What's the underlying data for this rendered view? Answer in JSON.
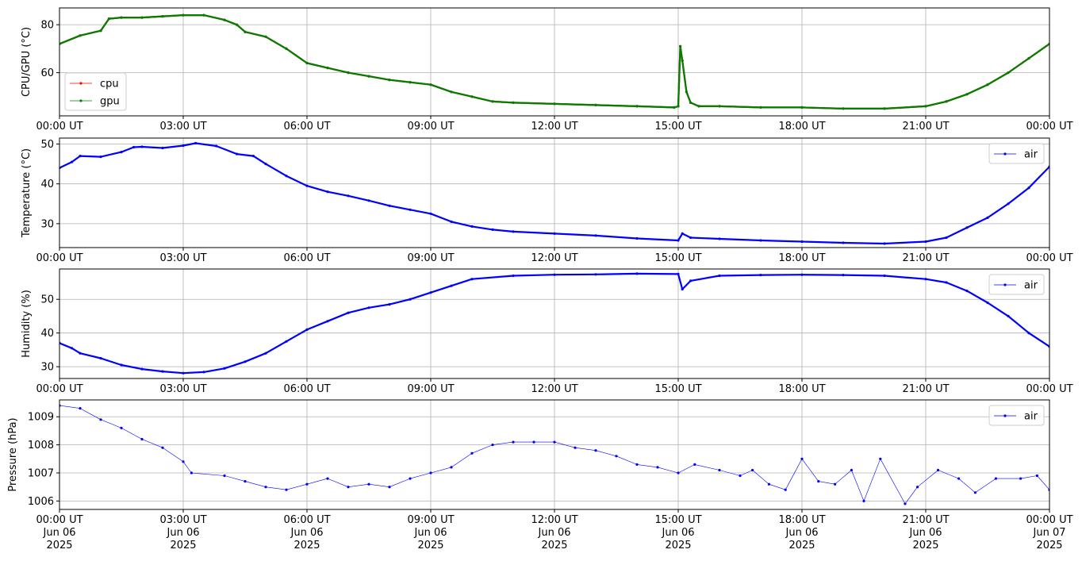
{
  "chart_data": [
    {
      "type": "line",
      "ylabel": "CPU/GPU (°C)",
      "ylim": [
        42,
        87
      ],
      "yticks": [
        60,
        80
      ],
      "xlim": [
        0,
        24
      ],
      "xtick_labels": [
        "00:00 UT",
        "03:00 UT",
        "06:00 UT",
        "09:00 UT",
        "12:00 UT",
        "15:00 UT",
        "18:00 UT",
        "21:00 UT",
        "00:00 UT"
      ],
      "grid": true,
      "legend_position": "lower-left",
      "series": [
        {
          "name": "cpu",
          "color": "#ff0000",
          "points": [
            [
              0,
              72
            ],
            [
              0.5,
              75.5
            ],
            [
              1,
              77.5
            ],
            [
              1.2,
              82.5
            ],
            [
              1.5,
              83
            ],
            [
              2,
              83
            ],
            [
              2.5,
              83.5
            ],
            [
              3,
              84
            ],
            [
              3.5,
              84
            ],
            [
              4,
              82
            ],
            [
              4.3,
              80
            ],
            [
              4.5,
              77
            ],
            [
              5,
              75
            ],
            [
              5.5,
              70
            ],
            [
              6,
              64
            ],
            [
              6.5,
              62
            ],
            [
              7,
              60
            ],
            [
              7.5,
              58.5
            ],
            [
              8,
              57
            ],
            [
              8.5,
              56
            ],
            [
              9,
              55
            ],
            [
              9.5,
              52
            ],
            [
              10,
              50
            ],
            [
              10.5,
              48
            ],
            [
              11,
              47.5
            ],
            [
              12,
              47
            ],
            [
              13,
              46.5
            ],
            [
              14,
              46
            ],
            [
              14.9,
              45.5
            ],
            [
              15,
              46
            ],
            [
              15.05,
              71
            ],
            [
              15.1,
              65
            ],
            [
              15.2,
              52
            ],
            [
              15.3,
              47.5
            ],
            [
              15.5,
              46
            ],
            [
              16,
              46
            ],
            [
              17,
              45.5
            ],
            [
              18,
              45.5
            ],
            [
              19,
              45
            ],
            [
              20,
              45
            ],
            [
              21,
              46
            ],
            [
              21.5,
              48
            ],
            [
              22,
              51
            ],
            [
              22.5,
              55
            ],
            [
              23,
              60
            ],
            [
              23.5,
              66
            ],
            [
              24,
              72
            ]
          ]
        },
        {
          "name": "gpu",
          "color": "#008000",
          "points": [
            [
              0,
              72
            ],
            [
              0.5,
              75.5
            ],
            [
              1,
              77.5
            ],
            [
              1.2,
              82.5
            ],
            [
              1.5,
              83
            ],
            [
              2,
              83
            ],
            [
              2.5,
              83.5
            ],
            [
              3,
              84
            ],
            [
              3.5,
              84
            ],
            [
              4,
              82
            ],
            [
              4.3,
              80
            ],
            [
              4.5,
              77
            ],
            [
              5,
              75
            ],
            [
              5.5,
              70
            ],
            [
              6,
              64
            ],
            [
              6.5,
              62
            ],
            [
              7,
              60
            ],
            [
              7.5,
              58.5
            ],
            [
              8,
              57
            ],
            [
              8.5,
              56
            ],
            [
              9,
              55
            ],
            [
              9.5,
              52
            ],
            [
              10,
              50
            ],
            [
              10.5,
              48
            ],
            [
              11,
              47.5
            ],
            [
              12,
              47
            ],
            [
              13,
              46.5
            ],
            [
              14,
              46
            ],
            [
              14.9,
              45.5
            ],
            [
              15,
              46
            ],
            [
              15.05,
              71
            ],
            [
              15.1,
              65
            ],
            [
              15.2,
              52
            ],
            [
              15.3,
              47.5
            ],
            [
              15.5,
              46
            ],
            [
              16,
              46
            ],
            [
              17,
              45.5
            ],
            [
              18,
              45.5
            ],
            [
              19,
              45
            ],
            [
              20,
              45
            ],
            [
              21,
              46
            ],
            [
              21.5,
              48
            ],
            [
              22,
              51
            ],
            [
              22.5,
              55
            ],
            [
              23,
              60
            ],
            [
              23.5,
              66
            ],
            [
              24,
              72
            ]
          ]
        }
      ]
    },
    {
      "type": "line",
      "ylabel": "Temperature (°C)",
      "ylim": [
        24,
        51.5
      ],
      "yticks": [
        30,
        40,
        50
      ],
      "xlim": [
        0,
        24
      ],
      "xtick_labels": [
        "00:00 UT",
        "03:00 UT",
        "06:00 UT",
        "09:00 UT",
        "12:00 UT",
        "15:00 UT",
        "18:00 UT",
        "21:00 UT",
        "00:00 UT"
      ],
      "grid": true,
      "legend_position": "upper-right",
      "series": [
        {
          "name": "air",
          "color": "#0000ff",
          "points": [
            [
              0,
              44
            ],
            [
              0.3,
              45.5
            ],
            [
              0.5,
              47
            ],
            [
              1,
              46.8
            ],
            [
              1.5,
              48
            ],
            [
              1.8,
              49.2
            ],
            [
              2,
              49.3
            ],
            [
              2.5,
              49
            ],
            [
              3,
              49.6
            ],
            [
              3.3,
              50.2
            ],
            [
              3.8,
              49.5
            ],
            [
              4.3,
              47.5
            ],
            [
              4.7,
              47
            ],
            [
              5,
              45
            ],
            [
              5.5,
              42
            ],
            [
              6,
              39.5
            ],
            [
              6.5,
              38
            ],
            [
              7,
              37
            ],
            [
              7.5,
              35.8
            ],
            [
              8,
              34.5
            ],
            [
              8.5,
              33.5
            ],
            [
              9,
              32.5
            ],
            [
              9.5,
              30.5
            ],
            [
              10,
              29.3
            ],
            [
              10.5,
              28.5
            ],
            [
              11,
              28
            ],
            [
              12,
              27.5
            ],
            [
              13,
              27
            ],
            [
              14,
              26.3
            ],
            [
              15,
              25.8
            ],
            [
              15.1,
              27.5
            ],
            [
              15.3,
              26.5
            ],
            [
              16,
              26.2
            ],
            [
              17,
              25.8
            ],
            [
              18,
              25.5
            ],
            [
              19,
              25.2
            ],
            [
              20,
              25
            ],
            [
              21,
              25.5
            ],
            [
              21.5,
              26.5
            ],
            [
              22,
              29
            ],
            [
              22.5,
              31.5
            ],
            [
              23,
              35
            ],
            [
              23.5,
              39
            ],
            [
              24,
              44.3
            ]
          ]
        }
      ]
    },
    {
      "type": "line",
      "ylabel": "Humidity (%)",
      "ylim": [
        26.5,
        59
      ],
      "yticks": [
        30,
        40,
        50
      ],
      "xlim": [
        0,
        24
      ],
      "xtick_labels": [
        "00:00 UT",
        "03:00 UT",
        "06:00 UT",
        "09:00 UT",
        "12:00 UT",
        "15:00 UT",
        "18:00 UT",
        "21:00 UT",
        "00:00 UT"
      ],
      "grid": true,
      "legend_position": "upper-right",
      "series": [
        {
          "name": "air",
          "color": "#0000ff",
          "points": [
            [
              0,
              37
            ],
            [
              0.3,
              35.5
            ],
            [
              0.5,
              34
            ],
            [
              1,
              32.5
            ],
            [
              1.5,
              30.5
            ],
            [
              2,
              29.3
            ],
            [
              2.5,
              28.6
            ],
            [
              3,
              28.1
            ],
            [
              3.5,
              28.4
            ],
            [
              4,
              29.5
            ],
            [
              4.5,
              31.5
            ],
            [
              5,
              34
            ],
            [
              5.5,
              37.5
            ],
            [
              6,
              41
            ],
            [
              6.5,
              43.5
            ],
            [
              7,
              46
            ],
            [
              7.5,
              47.5
            ],
            [
              8,
              48.5
            ],
            [
              8.5,
              50
            ],
            [
              9,
              52
            ],
            [
              9.5,
              54
            ],
            [
              10,
              56
            ],
            [
              11,
              57
            ],
            [
              12,
              57.3
            ],
            [
              13,
              57.4
            ],
            [
              14,
              57.6
            ],
            [
              15,
              57.5
            ],
            [
              15.1,
              53
            ],
            [
              15.3,
              55.5
            ],
            [
              16,
              57
            ],
            [
              17,
              57.2
            ],
            [
              18,
              57.3
            ],
            [
              19,
              57.2
            ],
            [
              20,
              57
            ],
            [
              21,
              56
            ],
            [
              21.5,
              55
            ],
            [
              22,
              52.5
            ],
            [
              22.5,
              49
            ],
            [
              23,
              45
            ],
            [
              23.5,
              40
            ],
            [
              24,
              36
            ]
          ]
        }
      ]
    },
    {
      "type": "scatter",
      "ylabel": "Pressure (hPa)",
      "ylim": [
        1005.7,
        1009.6
      ],
      "yticks": [
        1006,
        1007,
        1008,
        1009
      ],
      "xlim": [
        0,
        24
      ],
      "xtick_labels": [
        "00:00 UT\nJun 06\n2025",
        "03:00 UT\nJun 06\n2025",
        "06:00 UT\nJun 06\n2025",
        "09:00 UT\nJun 06\n2025",
        "12:00 UT\nJun 06\n2025",
        "15:00 UT\nJun 06\n2025",
        "18:00 UT\nJun 06\n2025",
        "21:00 UT\nJun 06\n2025",
        "00:00 UT\nJun 07\n2025"
      ],
      "grid": true,
      "legend_position": "upper-right",
      "series": [
        {
          "name": "air",
          "color": "#0000ff",
          "points": [
            [
              0,
              1009.4
            ],
            [
              0.5,
              1009.3
            ],
            [
              1,
              1008.9
            ],
            [
              1.5,
              1008.6
            ],
            [
              2,
              1008.2
            ],
            [
              2.5,
              1007.9
            ],
            [
              3,
              1007.4
            ],
            [
              3.2,
              1007.0
            ],
            [
              4,
              1006.9
            ],
            [
              4.5,
              1006.7
            ],
            [
              5,
              1006.5
            ],
            [
              5.5,
              1006.4
            ],
            [
              6,
              1006.6
            ],
            [
              6.5,
              1006.8
            ],
            [
              7,
              1006.5
            ],
            [
              7.5,
              1006.6
            ],
            [
              8,
              1006.5
            ],
            [
              8.5,
              1006.8
            ],
            [
              9,
              1007.0
            ],
            [
              9.5,
              1007.2
            ],
            [
              10,
              1007.7
            ],
            [
              10.5,
              1008.0
            ],
            [
              11,
              1008.1
            ],
            [
              11.5,
              1008.1
            ],
            [
              12,
              1008.1
            ],
            [
              12.5,
              1007.9
            ],
            [
              13,
              1007.8
            ],
            [
              13.5,
              1007.6
            ],
            [
              14,
              1007.3
            ],
            [
              14.5,
              1007.2
            ],
            [
              15,
              1007.0
            ],
            [
              15.4,
              1007.3
            ],
            [
              16,
              1007.1
            ],
            [
              16.5,
              1006.9
            ],
            [
              16.8,
              1007.1
            ],
            [
              17.2,
              1006.6
            ],
            [
              17.6,
              1006.4
            ],
            [
              18,
              1007.5
            ],
            [
              18.4,
              1006.7
            ],
            [
              18.8,
              1006.6
            ],
            [
              19.2,
              1007.1
            ],
            [
              19.5,
              1006.0
            ],
            [
              19.9,
              1007.5
            ],
            [
              20.5,
              1005.9
            ],
            [
              20.8,
              1006.5
            ],
            [
              21.3,
              1007.1
            ],
            [
              21.8,
              1006.8
            ],
            [
              22.2,
              1006.3
            ],
            [
              22.7,
              1006.8
            ],
            [
              23.3,
              1006.8
            ],
            [
              23.7,
              1006.9
            ],
            [
              24,
              1006.4
            ]
          ]
        }
      ]
    }
  ]
}
